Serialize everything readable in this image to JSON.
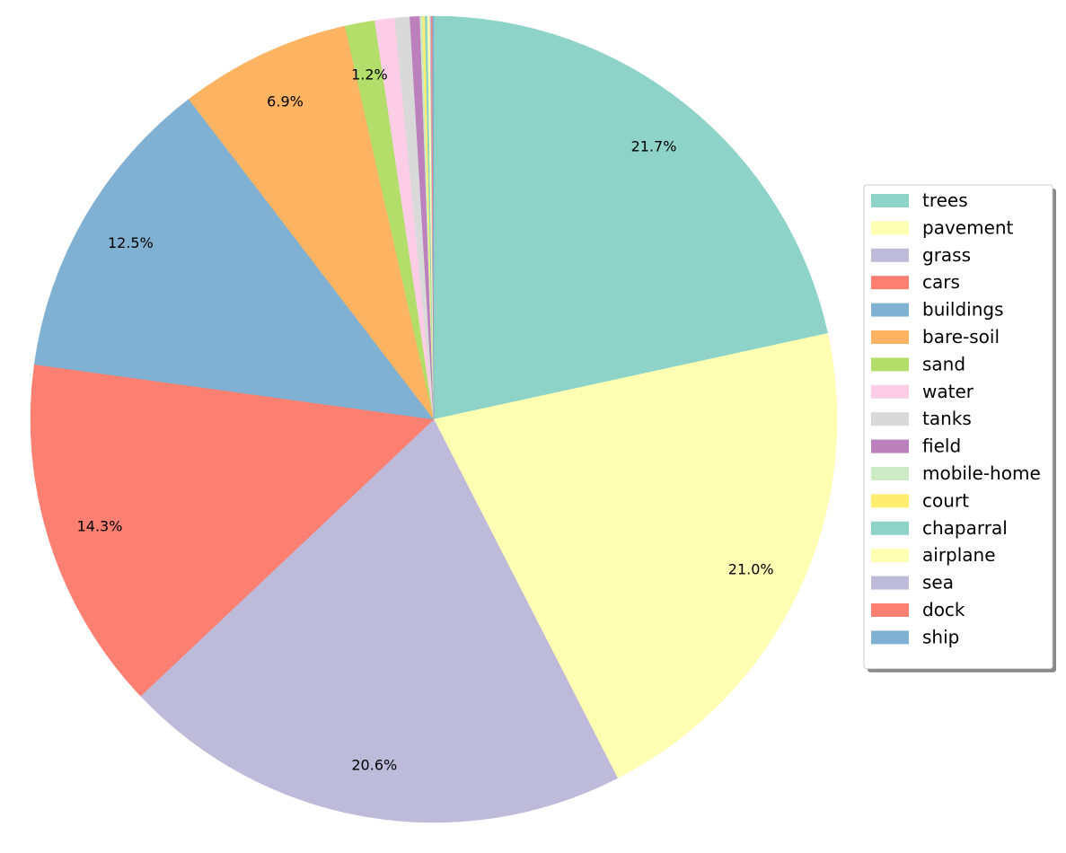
{
  "chart_data": {
    "type": "pie",
    "title": "",
    "start_angle_deg": 90,
    "direction": "clockwise",
    "legend_position": "right",
    "slices": [
      {
        "label": "trees",
        "value": 21.7,
        "pct_label": "21.7%",
        "color": "#8dd3c7"
      },
      {
        "label": "pavement",
        "value": 21.0,
        "pct_label": "21.0%",
        "color": "#ffffb3"
      },
      {
        "label": "grass",
        "value": 20.6,
        "pct_label": "20.6%",
        "color": "#bebada"
      },
      {
        "label": "cars",
        "value": 14.3,
        "pct_label": "14.3%",
        "color": "#fb8072"
      },
      {
        "label": "buildings",
        "value": 12.5,
        "pct_label": "12.5%",
        "color": "#80b1d3"
      },
      {
        "label": "bare-soil",
        "value": 6.9,
        "pct_label": "6.9%",
        "color": "#fdb462"
      },
      {
        "label": "sand",
        "value": 1.2,
        "pct_label": "1.2%",
        "color": "#b3de69"
      },
      {
        "label": "water",
        "value": 0.8,
        "pct_label": "",
        "color": "#fccde5"
      },
      {
        "label": "tanks",
        "value": 0.6,
        "pct_label": "",
        "color": "#d9d9d9"
      },
      {
        "label": "field",
        "value": 0.4,
        "pct_label": "",
        "color": "#bc80bd"
      },
      {
        "label": "mobile-home",
        "value": 0.1,
        "pct_label": "",
        "color": "#ccebc5"
      },
      {
        "label": "court",
        "value": 0.1,
        "pct_label": "",
        "color": "#ffed6f"
      },
      {
        "label": "chaparral",
        "value": 0.1,
        "pct_label": "",
        "color": "#8dd3c7"
      },
      {
        "label": "airplane",
        "value": 0.1,
        "pct_label": "",
        "color": "#ffffb3"
      },
      {
        "label": "sea",
        "value": 0.05,
        "pct_label": "",
        "color": "#bebada"
      },
      {
        "label": "dock",
        "value": 0.05,
        "pct_label": "",
        "color": "#fb8072"
      },
      {
        "label": "ship",
        "value": 0.05,
        "pct_label": "",
        "color": "#80b1d3"
      }
    ]
  }
}
